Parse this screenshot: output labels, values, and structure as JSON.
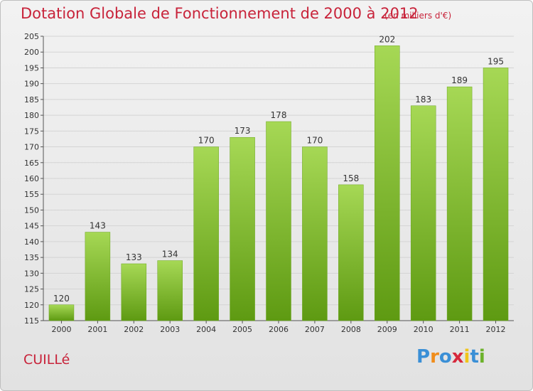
{
  "header": {
    "title": "Dotation Globale de Fonctionnement de 2000 à 2012",
    "subtitle": "(en milliers d'€)"
  },
  "footer": {
    "commune": "CUILLé",
    "brand": [
      "P",
      "r",
      "o",
      "x",
      "i",
      "t",
      "i"
    ],
    "brand_colors": [
      "#3a8fd6",
      "#f08c1a",
      "#3a8fd6",
      "#d6283c",
      "#f0c51a",
      "#3a8fd6",
      "#6cb22a"
    ]
  },
  "colors": {
    "bar_light": "#a6d855",
    "bar_dark": "#5e9a12",
    "text": "#c8233a"
  },
  "chart_data": {
    "type": "bar",
    "categories": [
      "2000",
      "2001",
      "2002",
      "2003",
      "2004",
      "2005",
      "2006",
      "2007",
      "2008",
      "2009",
      "2010",
      "2011",
      "2012"
    ],
    "values": [
      120,
      143,
      133,
      134,
      170,
      173,
      178,
      170,
      158,
      202,
      183,
      189,
      195
    ],
    "title": "Dotation Globale de Fonctionnement de 2000 à 2012",
    "subtitle": "(en milliers d'€)",
    "xlabel": "",
    "ylabel": "",
    "ylim": [
      115,
      205
    ],
    "yticks": [
      115,
      120,
      125,
      130,
      135,
      140,
      145,
      150,
      155,
      160,
      165,
      170,
      175,
      180,
      185,
      190,
      195,
      200,
      205
    ],
    "grid": true,
    "legend": "none"
  }
}
